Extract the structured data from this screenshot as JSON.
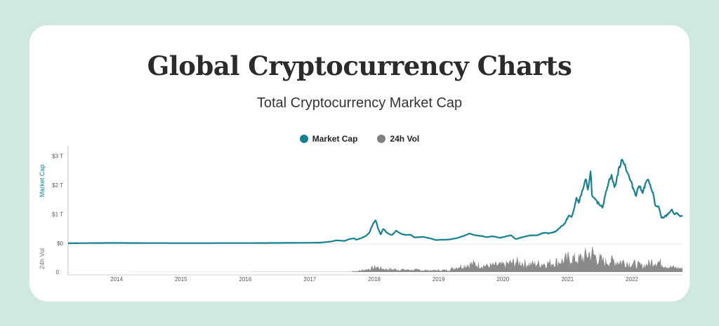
{
  "title": "Global Cryptocurrency Charts",
  "subtitle": "Total Cryptocurrency Market Cap",
  "colors": {
    "background": "#cfe9e0",
    "card": "#ffffff",
    "market_cap": "#17818f",
    "volume": "#808080"
  },
  "chart_data": {
    "type": "line",
    "legend_position": "top-center",
    "x_axis": {
      "type": "date",
      "range": [
        "2013-04-01",
        "2022-10-15"
      ],
      "tick_labels": [
        "2014",
        "2015",
        "2016",
        "2017",
        "2018",
        "2019",
        "2020",
        "2021",
        "2022"
      ]
    },
    "y_axis_top": {
      "label": "Market Cap",
      "tick_labels": [
        "$0",
        "$1 T",
        "$2 T",
        "$3 T"
      ],
      "range_trillions": [
        0,
        3.1
      ]
    },
    "y_axis_bottom": {
      "label": "24h Vol",
      "tick_labels": [
        "0"
      ]
    },
    "series": [
      {
        "name": "Market Cap",
        "type": "line",
        "unit": "trillion USD",
        "points": [
          [
            "2013-04-01",
            0.001
          ],
          [
            "2013-12-01",
            0.013
          ],
          [
            "2014-06-01",
            0.008
          ],
          [
            "2015-01-01",
            0.005
          ],
          [
            "2016-01-01",
            0.007
          ],
          [
            "2016-12-01",
            0.017
          ],
          [
            "2017-03-01",
            0.022
          ],
          [
            "2017-05-01",
            0.06
          ],
          [
            "2017-06-01",
            0.1
          ],
          [
            "2017-07-15",
            0.08
          ],
          [
            "2017-08-15",
            0.15
          ],
          [
            "2017-09-10",
            0.17
          ],
          [
            "2017-09-20",
            0.12
          ],
          [
            "2017-10-20",
            0.18
          ],
          [
            "2017-11-15",
            0.25
          ],
          [
            "2017-12-05",
            0.38
          ],
          [
            "2017-12-20",
            0.6
          ],
          [
            "2018-01-07",
            0.81
          ],
          [
            "2018-01-20",
            0.55
          ],
          [
            "2018-02-06",
            0.3
          ],
          [
            "2018-02-20",
            0.5
          ],
          [
            "2018-03-15",
            0.35
          ],
          [
            "2018-04-10",
            0.28
          ],
          [
            "2018-05-05",
            0.43
          ],
          [
            "2018-06-01",
            0.33
          ],
          [
            "2018-07-01",
            0.28
          ],
          [
            "2018-07-25",
            0.3
          ],
          [
            "2018-08-15",
            0.2
          ],
          [
            "2018-10-01",
            0.22
          ],
          [
            "2018-11-15",
            0.17
          ],
          [
            "2018-12-15",
            0.11
          ],
          [
            "2019-01-15",
            0.12
          ],
          [
            "2019-03-01",
            0.13
          ],
          [
            "2019-04-15",
            0.18
          ],
          [
            "2019-05-15",
            0.24
          ],
          [
            "2019-06-26",
            0.34
          ],
          [
            "2019-07-20",
            0.28
          ],
          [
            "2019-09-01",
            0.25
          ],
          [
            "2019-10-01",
            0.21
          ],
          [
            "2019-11-01",
            0.24
          ],
          [
            "2019-12-15",
            0.19
          ],
          [
            "2020-01-15",
            0.23
          ],
          [
            "2020-02-15",
            0.28
          ],
          [
            "2020-03-13",
            0.14
          ],
          [
            "2020-04-15",
            0.2
          ],
          [
            "2020-06-01",
            0.27
          ],
          [
            "2020-07-15",
            0.28
          ],
          [
            "2020-08-15",
            0.36
          ],
          [
            "2020-09-15",
            0.34
          ],
          [
            "2020-10-25",
            0.4
          ],
          [
            "2020-11-20",
            0.55
          ],
          [
            "2020-12-20",
            0.7
          ],
          [
            "2021-01-05",
            0.95
          ],
          [
            "2021-01-25",
            0.9
          ],
          [
            "2021-02-21",
            1.55
          ],
          [
            "2021-03-05",
            1.4
          ],
          [
            "2021-04-15",
            2.2
          ],
          [
            "2021-04-25",
            1.8
          ],
          [
            "2021-05-12",
            2.5
          ],
          [
            "2021-05-20",
            1.6
          ],
          [
            "2021-06-20",
            1.4
          ],
          [
            "2021-07-20",
            1.25
          ],
          [
            "2021-08-15",
            2.0
          ],
          [
            "2021-09-05",
            2.35
          ],
          [
            "2021-09-25",
            1.9
          ],
          [
            "2021-10-20",
            2.6
          ],
          [
            "2021-11-10",
            2.9
          ],
          [
            "2021-11-30",
            2.55
          ],
          [
            "2021-12-20",
            2.2
          ],
          [
            "2022-01-24",
            1.65
          ],
          [
            "2022-02-10",
            2.0
          ],
          [
            "2022-03-01",
            1.75
          ],
          [
            "2022-03-29",
            2.2
          ],
          [
            "2022-04-30",
            1.75
          ],
          [
            "2022-05-12",
            1.3
          ],
          [
            "2022-06-01",
            1.25
          ],
          [
            "2022-06-18",
            0.85
          ],
          [
            "2022-07-15",
            0.95
          ],
          [
            "2022-08-14",
            1.15
          ],
          [
            "2022-09-01",
            0.98
          ],
          [
            "2022-09-15",
            1.05
          ],
          [
            "2022-10-01",
            0.92
          ],
          [
            "2022-10-15",
            0.93
          ]
        ]
      },
      {
        "name": "24h Vol",
        "type": "area",
        "unit": "relative (axis unlabeled beyond 0)",
        "points": [
          [
            "2013-04-01",
            0.0
          ],
          [
            "2017-06-01",
            0.02
          ],
          [
            "2017-10-01",
            0.05
          ],
          [
            "2017-12-15",
            0.18
          ],
          [
            "2018-01-10",
            0.25
          ],
          [
            "2018-03-01",
            0.15
          ],
          [
            "2018-06-01",
            0.12
          ],
          [
            "2018-09-01",
            0.1
          ],
          [
            "2018-12-01",
            0.08
          ],
          [
            "2019-03-01",
            0.1
          ],
          [
            "2019-04-01",
            0.22
          ],
          [
            "2019-06-01",
            0.35
          ],
          [
            "2019-07-15",
            0.4
          ],
          [
            "2019-10-01",
            0.3
          ],
          [
            "2020-01-01",
            0.35
          ],
          [
            "2020-03-15",
            0.5
          ],
          [
            "2020-06-01",
            0.4
          ],
          [
            "2020-09-01",
            0.42
          ],
          [
            "2020-12-01",
            0.55
          ],
          [
            "2021-01-15",
            0.7
          ],
          [
            "2021-03-01",
            0.6
          ],
          [
            "2021-05-15",
            0.95
          ],
          [
            "2021-06-15",
            0.7
          ],
          [
            "2021-08-01",
            0.5
          ],
          [
            "2021-09-10",
            0.55
          ],
          [
            "2021-11-15",
            0.5
          ],
          [
            "2022-01-15",
            0.4
          ],
          [
            "2022-03-01",
            0.3
          ],
          [
            "2022-05-12",
            0.55
          ],
          [
            "2022-06-15",
            0.45
          ],
          [
            "2022-08-01",
            0.25
          ],
          [
            "2022-10-15",
            0.18
          ]
        ]
      }
    ]
  }
}
